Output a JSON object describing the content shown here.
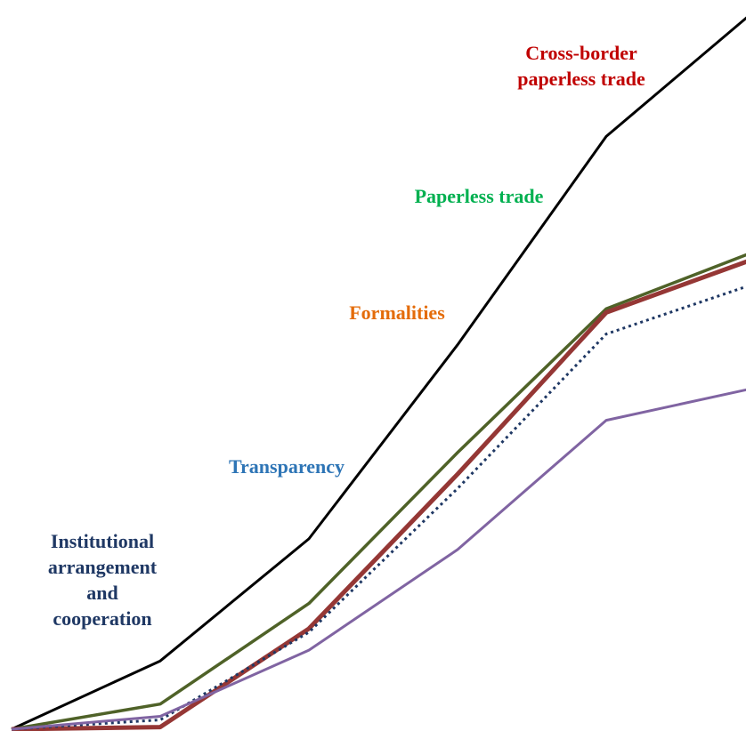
{
  "chart_data": {
    "type": "line",
    "title": "",
    "xlabel": "",
    "ylabel": "",
    "x": [
      0,
      1,
      2,
      3,
      4,
      5
    ],
    "xlim": [
      0,
      5
    ],
    "ylim": [
      0,
      100
    ],
    "grid": false,
    "legend": "none",
    "series": [
      {
        "key": "black",
        "color": "#000000",
        "width": 3,
        "dash": "",
        "values": [
          0,
          9.5,
          26.5,
          53.5,
          82.5,
          100
        ]
      },
      {
        "key": "olive",
        "color": "#4F6228",
        "width": 3.5,
        "dash": "",
        "values": [
          0,
          3.5,
          17.5,
          38.5,
          58.5,
          66.5
        ]
      },
      {
        "key": "red",
        "color": "#953735",
        "width": 5,
        "dash": "",
        "values": [
          0,
          0.3,
          14,
          35.5,
          58,
          65.5
        ]
      },
      {
        "key": "navy",
        "color": "#1F3864",
        "width": 3,
        "dash": "3,4",
        "values": [
          0,
          1.3,
          13.5,
          33.5,
          55,
          62
        ]
      },
      {
        "key": "purple",
        "color": "#8064A2",
        "width": 3,
        "dash": "",
        "values": [
          0,
          1.8,
          11,
          25,
          43,
          47.5
        ]
      }
    ],
    "annotations": [
      {
        "id": "institutional",
        "lines": [
          "Institutional",
          "arrangement",
          "and",
          "cooperation"
        ],
        "color": "#1F3864"
      },
      {
        "id": "transparency",
        "lines": [
          "Transparency"
        ],
        "color": "#2E75B6"
      },
      {
        "id": "formalities",
        "lines": [
          "Formalities"
        ],
        "color": "#E46C0A"
      },
      {
        "id": "paperless",
        "lines": [
          "Paperless trade"
        ],
        "color": "#00B050"
      },
      {
        "id": "crossborder",
        "lines": [
          "Cross-border",
          "paperless trade"
        ],
        "color": "#C00000"
      }
    ]
  }
}
